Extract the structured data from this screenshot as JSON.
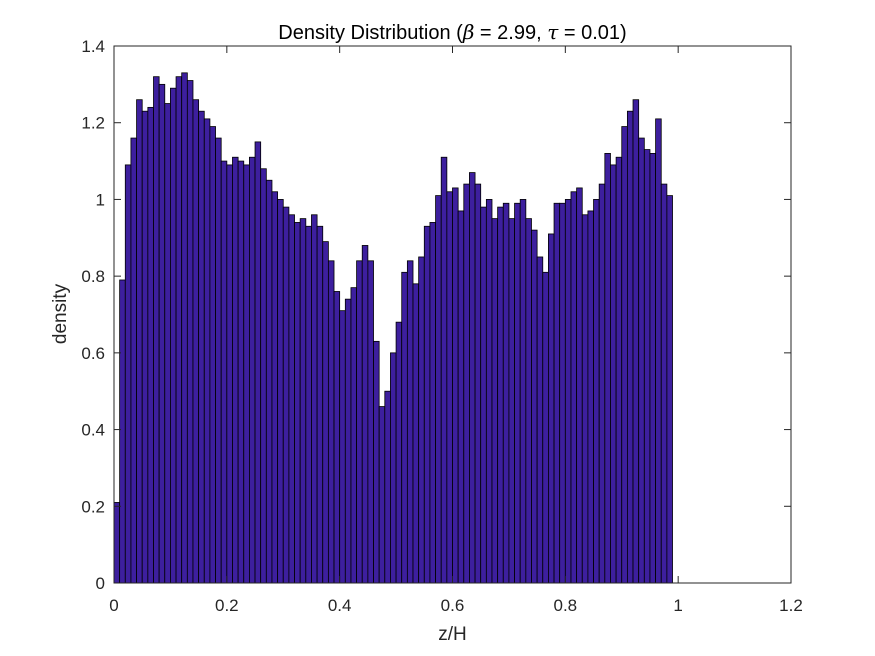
{
  "chart_data": {
    "type": "bar",
    "title": {
      "prefix": "Density Distribution (",
      "beta_symbol": "β",
      "beta_text": " = 2.99, ",
      "tau_symbol": "τ",
      "tau_text": " = 0.01)"
    },
    "xlabel": "z/H",
    "ylabel": "density",
    "xlim": [
      0,
      1.2
    ],
    "ylim": [
      0,
      1.4
    ],
    "xticks": [
      "0",
      "0.2",
      "0.4",
      "0.6",
      "0.8",
      "1",
      "1.2"
    ],
    "yticks": [
      "0",
      "0.2",
      "0.4",
      "0.6",
      "0.8",
      "1",
      "1.2",
      "1.4"
    ],
    "grid": false,
    "bin_width": 0.01,
    "bar_color": "#3d1f9e",
    "edge_color": "#000000",
    "values": [
      0.21,
      0.79,
      1.09,
      1.16,
      1.26,
      1.23,
      1.24,
      1.32,
      1.3,
      1.25,
      1.29,
      1.32,
      1.33,
      1.31,
      1.26,
      1.23,
      1.21,
      1.19,
      1.16,
      1.1,
      1.09,
      1.11,
      1.1,
      1.09,
      1.11,
      1.15,
      1.08,
      1.05,
      1.02,
      1.0,
      0.98,
      0.96,
      0.94,
      0.95,
      0.93,
      0.96,
      0.93,
      0.89,
      0.84,
      0.76,
      0.71,
      0.74,
      0.77,
      0.84,
      0.88,
      0.84,
      0.63,
      0.46,
      0.5,
      0.6,
      0.68,
      0.81,
      0.84,
      0.78,
      0.85,
      0.93,
      0.94,
      1.01,
      1.11,
      1.02,
      1.03,
      0.97,
      1.04,
      1.07,
      1.04,
      0.98,
      1.0,
      0.95,
      0.98,
      0.99,
      0.95,
      0.99,
      1.0,
      0.95,
      0.92,
      0.85,
      0.81,
      0.91,
      0.99,
      0.99,
      1.0,
      1.02,
      1.03,
      0.96,
      0.97,
      1.0,
      1.04,
      1.12,
      1.09,
      1.11,
      1.19,
      1.23,
      1.26,
      1.16,
      1.13,
      1.12,
      1.21,
      1.04,
      1.01
    ]
  }
}
